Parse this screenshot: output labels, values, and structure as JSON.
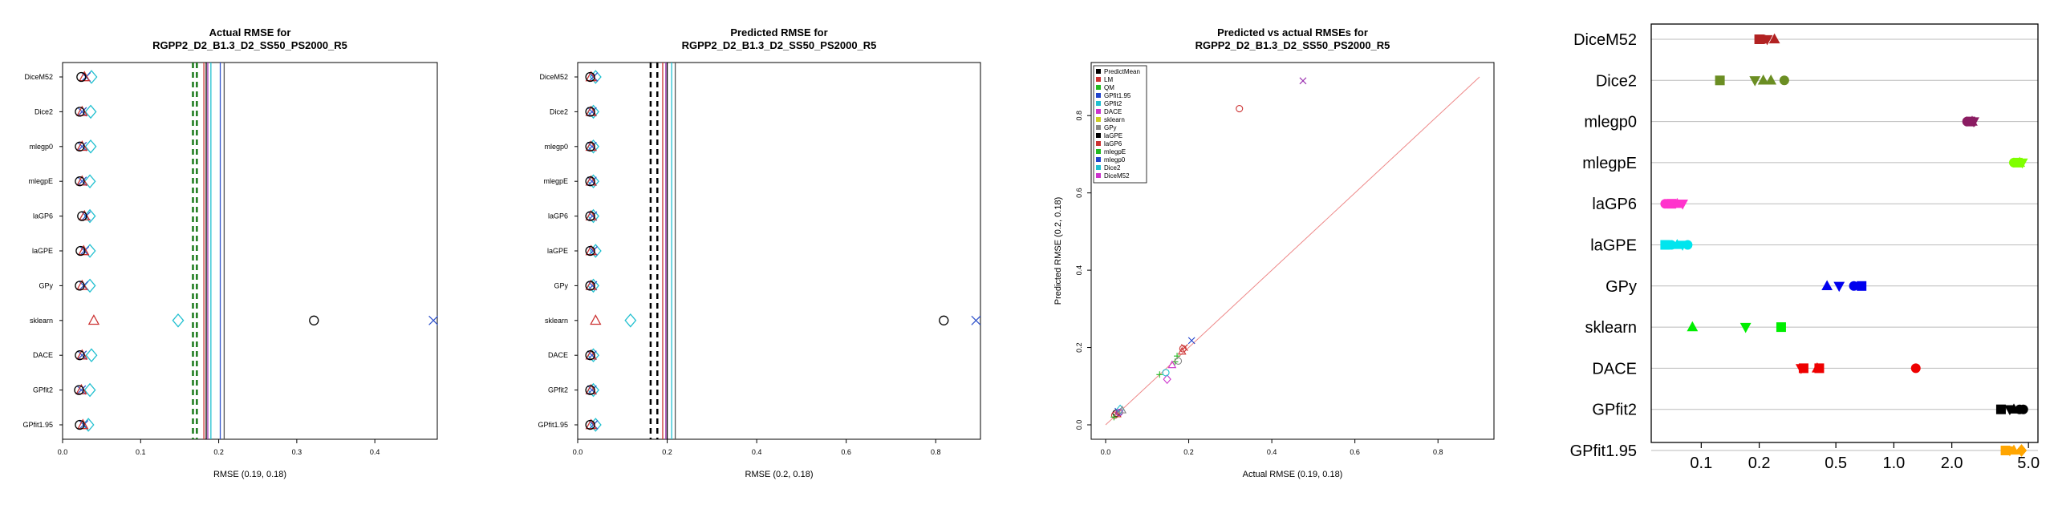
{
  "chart_data": [
    {
      "type": "scatter",
      "title": [
        "Actual RMSE for",
        "RGPP2_D2_B1.3_D2_SS50_PS2000_R5"
      ],
      "xlabel": "RMSE (0.19, 0.18)",
      "xlim": [
        0,
        0.48
      ],
      "xticks": [
        "0.0",
        "0.1",
        "0.2",
        "0.3",
        "0.4"
      ],
      "xtick_values": [
        0,
        0.1,
        0.2,
        0.3,
        0.4
      ],
      "categories": [
        "DiceM52",
        "Dice2",
        "mlegp0",
        "mlegpE",
        "laGP6",
        "laGPE",
        "GPy",
        "sklearn",
        "DACE",
        "GPfit2",
        "GPfit1.95"
      ],
      "vlines": [
        {
          "x": 0.167,
          "color": "#1a7a1a",
          "dash": true
        },
        {
          "x": 0.172,
          "color": "#1a7a1a",
          "dash": true
        },
        {
          "x": 0.181,
          "color": "#cc3333",
          "dash": false
        },
        {
          "x": 0.184,
          "color": "#000000",
          "dash": false
        },
        {
          "x": 0.186,
          "color": "#9b30b0",
          "dash": false
        },
        {
          "x": 0.19,
          "color": "#22c0d0",
          "dash": false
        },
        {
          "x": 0.202,
          "color": "#3355cc",
          "dash": false
        },
        {
          "x": 0.207,
          "color": "#555555",
          "dash": false
        }
      ],
      "series": [
        {
          "name": "",
          "marker": "diamond",
          "color": "#22c0d0",
          "x": [
            0.037,
            0.036,
            0.036,
            0.035,
            0.035,
            0.035,
            0.035,
            0.148,
            0.037,
            0.035,
            0.033
          ]
        },
        {
          "name": "",
          "marker": "x",
          "color": "#3355cc",
          "x": [
            0.03,
            0.025,
            0.025,
            0.025,
            0.03,
            0.028,
            0.027,
            0.475,
            0.025,
            0.024,
            0.027
          ]
        },
        {
          "name": "",
          "marker": "triangle",
          "color": "#cc3333",
          "x": [
            0.028,
            0.025,
            0.025,
            0.025,
            0.028,
            0.027,
            0.025,
            0.04,
            0.025,
            0.024,
            0.026
          ]
        },
        {
          "name": "",
          "marker": "circle",
          "color": "#000000",
          "x": [
            0.024,
            0.022,
            0.022,
            0.022,
            0.025,
            0.023,
            0.022,
            0.322,
            0.022,
            0.021,
            0.022
          ]
        }
      ]
    },
    {
      "type": "scatter",
      "title": [
        "Predicted RMSE for",
        "RGPP2_D2_B1.3_D2_SS50_PS2000_R5"
      ],
      "xlabel": "RMSE (0.2, 0.18)",
      "xlim": [
        0,
        0.9
      ],
      "xticks": [
        "0.0",
        "0.2",
        "0.4",
        "0.6",
        "0.8"
      ],
      "xtick_values": [
        0,
        0.2,
        0.4,
        0.6,
        0.8
      ],
      "categories": [
        "DiceM52",
        "Dice2",
        "mlegp0",
        "mlegpE",
        "laGP6",
        "laGPE",
        "GPy",
        "sklearn",
        "DACE",
        "GPfit2",
        "GPfit1.95"
      ],
      "vlines": [
        {
          "x": 0.163,
          "color": "#000000",
          "dash": true
        },
        {
          "x": 0.178,
          "color": "#000000",
          "dash": true
        },
        {
          "x": 0.19,
          "color": "#cc3333",
          "dash": false
        },
        {
          "x": 0.197,
          "color": "#9b30b0",
          "dash": false
        },
        {
          "x": 0.2,
          "color": "#000000",
          "dash": false
        },
        {
          "x": 0.21,
          "color": "#22c0d0",
          "dash": false
        },
        {
          "x": 0.218,
          "color": "#555555",
          "dash": false
        }
      ],
      "series": [
        {
          "name": "",
          "marker": "diamond",
          "color": "#22c0d0",
          "x": [
            0.04,
            0.035,
            0.035,
            0.035,
            0.035,
            0.04,
            0.035,
            0.118,
            0.035,
            0.035,
            0.04
          ]
        },
        {
          "name": "",
          "marker": "x",
          "color": "#3355cc",
          "x": [
            0.035,
            0.032,
            0.032,
            0.032,
            0.033,
            0.034,
            0.033,
            0.89,
            0.032,
            0.032,
            0.035
          ]
        },
        {
          "name": "",
          "marker": "triangle",
          "color": "#cc3333",
          "x": [
            0.03,
            0.03,
            0.03,
            0.03,
            0.03,
            0.03,
            0.03,
            0.04,
            0.03,
            0.03,
            0.03
          ]
        },
        {
          "name": "",
          "marker": "circle",
          "color": "#000000",
          "x": [
            0.028,
            0.028,
            0.028,
            0.028,
            0.028,
            0.028,
            0.028,
            0.818,
            0.028,
            0.028,
            0.028
          ]
        }
      ]
    },
    {
      "type": "scatter",
      "title": [
        "Predicted vs actual RMSEs for",
        "RGPP2_D2_B1.3_D2_SS50_PS2000_R5"
      ],
      "xlabel": "Actual RMSE (0.19, 0.18)",
      "ylabel": "Predicted RMSE (0.2, 0.18)",
      "xlim": [
        0,
        0.9
      ],
      "ylim": [
        0,
        0.9
      ],
      "xticks": [
        "0.0",
        "0.2",
        "0.4",
        "0.6",
        "0.8"
      ],
      "xtick_values": [
        0,
        0.2,
        0.4,
        0.6,
        0.8
      ],
      "yticks": [
        "0.0",
        "0.2",
        "0.4",
        "0.6",
        "0.8"
      ],
      "ytick_values": [
        0,
        0.2,
        0.4,
        0.6,
        0.8
      ],
      "diagonal": true,
      "legend": {
        "placement": "top-left",
        "entries": [
          {
            "label": "PredictMean",
            "color": "#000000"
          },
          {
            "label": "LM",
            "color": "#cc3333"
          },
          {
            "label": "QM",
            "color": "#22bb22"
          },
          {
            "label": "GPfit1.95",
            "color": "#2244cc"
          },
          {
            "label": "GPfit2",
            "color": "#22c0d0"
          },
          {
            "label": "DACE",
            "color": "#cc33cc"
          },
          {
            "label": "sklearn",
            "color": "#cccc22"
          },
          {
            "label": "GPy",
            "color": "#888888"
          },
          {
            "label": "laGPE",
            "color": "#000000"
          },
          {
            "label": "laGP6",
            "color": "#cc3333"
          },
          {
            "label": "mlegpE",
            "color": "#22bb22"
          },
          {
            "label": "mlegp0",
            "color": "#2244cc"
          },
          {
            "label": "Dice2",
            "color": "#22c0d0"
          },
          {
            "label": "DiceM52",
            "color": "#cc33cc"
          }
        ]
      },
      "points": [
        {
          "x": 0.322,
          "y": 0.818,
          "marker": "circle",
          "color": "#cc3333"
        },
        {
          "x": 0.475,
          "y": 0.89,
          "marker": "x",
          "color": "#9b30b0"
        },
        {
          "x": 0.148,
          "y": 0.118,
          "marker": "diamond",
          "color": "#cc33cc"
        },
        {
          "x": 0.207,
          "y": 0.218,
          "marker": "x",
          "color": "#2244cc"
        },
        {
          "x": 0.19,
          "y": 0.2,
          "marker": "x",
          "color": "#cc3333"
        },
        {
          "x": 0.184,
          "y": 0.19,
          "marker": "triangle",
          "color": "#cc3333"
        },
        {
          "x": 0.186,
          "y": 0.197,
          "marker": "circle",
          "color": "#cc3333"
        },
        {
          "x": 0.172,
          "y": 0.178,
          "marker": "plus",
          "color": "#22bb22"
        },
        {
          "x": 0.167,
          "y": 0.163,
          "marker": "plus",
          "color": "#22bb22"
        },
        {
          "x": 0.13,
          "y": 0.13,
          "marker": "plus",
          "color": "#22bb22"
        },
        {
          "x": 0.145,
          "y": 0.135,
          "marker": "circle",
          "color": "#22c0d0"
        },
        {
          "x": 0.16,
          "y": 0.155,
          "marker": "triangle",
          "color": "#cc33cc"
        },
        {
          "x": 0.175,
          "y": 0.165,
          "marker": "circle",
          "color": "#888888"
        },
        {
          "x": 0.025,
          "y": 0.03,
          "marker": "circle",
          "color": "#000000"
        },
        {
          "x": 0.03,
          "y": 0.035,
          "marker": "x",
          "color": "#2244cc"
        },
        {
          "x": 0.028,
          "y": 0.028,
          "marker": "triangle",
          "color": "#cc3333"
        },
        {
          "x": 0.035,
          "y": 0.04,
          "marker": "diamond",
          "color": "#22c0d0"
        },
        {
          "x": 0.022,
          "y": 0.025,
          "marker": "circle",
          "color": "#cc3333"
        },
        {
          "x": 0.02,
          "y": 0.02,
          "marker": "plus",
          "color": "#22bb22"
        },
        {
          "x": 0.033,
          "y": 0.032,
          "marker": "circle",
          "color": "#9b30b0"
        },
        {
          "x": 0.04,
          "y": 0.038,
          "marker": "triangle",
          "color": "#888888"
        }
      ]
    },
    {
      "type": "scatter",
      "xscale": "log",
      "xlim": [
        0.055,
        5.6
      ],
      "xticks": [
        "0.1",
        "0.2",
        "0.5",
        "1.0",
        "2.0",
        "5.0"
      ],
      "xtick_values": [
        0.1,
        0.2,
        0.5,
        1.0,
        2.0,
        5.0
      ],
      "grid": "horizontal",
      "categories": [
        "DiceM52",
        "Dice2",
        "mlegp0",
        "mlegpE",
        "laGP6",
        "laGPE",
        "GPy",
        "sklearn",
        "DACE",
        "GPfit2",
        "GPfit1.95"
      ],
      "rows": [
        {
          "color": "#b22222",
          "points": [
            {
              "x": 0.2,
              "m": "square"
            },
            {
              "x": 0.21,
              "m": "circle"
            },
            {
              "x": 0.22,
              "m": "triangle_down"
            },
            {
              "x": 0.24,
              "m": "triangle"
            }
          ]
        },
        {
          "color": "#6b8e23",
          "points": [
            {
              "x": 0.125,
              "m": "square"
            },
            {
              "x": 0.19,
              "m": "triangle_down"
            },
            {
              "x": 0.21,
              "m": "triangle"
            },
            {
              "x": 0.23,
              "m": "triangle"
            },
            {
              "x": 0.27,
              "m": "circle"
            }
          ]
        },
        {
          "color": "#8b1c62",
          "points": [
            {
              "x": 2.4,
              "m": "circle"
            },
            {
              "x": 2.5,
              "m": "square"
            },
            {
              "x": 2.55,
              "m": "triangle"
            },
            {
              "x": 2.6,
              "m": "triangle_down"
            }
          ]
        },
        {
          "color": "#7fff00",
          "points": [
            {
              "x": 4.2,
              "m": "circle"
            },
            {
              "x": 4.4,
              "m": "square"
            },
            {
              "x": 4.5,
              "m": "triangle"
            },
            {
              "x": 4.65,
              "m": "triangle_down"
            }
          ]
        },
        {
          "color": "#ff33cc",
          "points": [
            {
              "x": 0.065,
              "m": "circle"
            },
            {
              "x": 0.07,
              "m": "square"
            },
            {
              "x": 0.075,
              "m": "triangle"
            },
            {
              "x": 0.08,
              "m": "triangle_down"
            }
          ]
        },
        {
          "color": "#00e5ee",
          "points": [
            {
              "x": 0.065,
              "m": "square"
            },
            {
              "x": 0.07,
              "m": "circle"
            },
            {
              "x": 0.075,
              "m": "triangle"
            },
            {
              "x": 0.08,
              "m": "triangle_down"
            },
            {
              "x": 0.085,
              "m": "circle"
            }
          ]
        },
        {
          "color": "#0000ee",
          "points": [
            {
              "x": 0.45,
              "m": "triangle"
            },
            {
              "x": 0.52,
              "m": "triangle_down"
            },
            {
              "x": 0.62,
              "m": "circle"
            },
            {
              "x": 0.68,
              "m": "square"
            }
          ]
        },
        {
          "color": "#00ee00",
          "points": [
            {
              "x": 0.09,
              "m": "triangle"
            },
            {
              "x": 0.17,
              "m": "triangle_down"
            },
            {
              "x": 0.26,
              "m": "square"
            }
          ]
        },
        {
          "color": "#ee0000",
          "points": [
            {
              "x": 0.33,
              "m": "triangle_down"
            },
            {
              "x": 0.34,
              "m": "square"
            },
            {
              "x": 0.4,
              "m": "triangle"
            },
            {
              "x": 0.41,
              "m": "square"
            },
            {
              "x": 1.3,
              "m": "circle"
            }
          ]
        },
        {
          "color": "#000000",
          "points": [
            {
              "x": 3.6,
              "m": "square"
            },
            {
              "x": 4.0,
              "m": "triangle_down"
            },
            {
              "x": 4.2,
              "m": "triangle"
            },
            {
              "x": 4.5,
              "m": "circle"
            },
            {
              "x": 4.7,
              "m": "circle"
            }
          ]
        },
        {
          "color": "#ffa500",
          "points": [
            {
              "x": 3.8,
              "m": "square"
            },
            {
              "x": 4.0,
              "m": "triangle_down"
            },
            {
              "x": 4.2,
              "m": "triangle"
            },
            {
              "x": 4.6,
              "m": "diamond"
            }
          ]
        }
      ]
    }
  ]
}
